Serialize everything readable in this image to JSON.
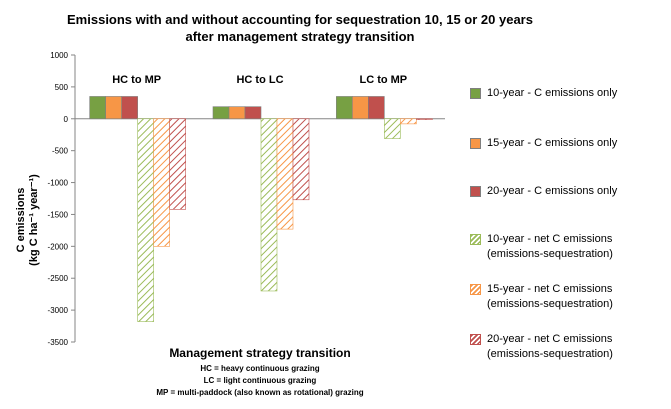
{
  "chart_data": {
    "type": "bar",
    "title": "Emissions with and without accounting for sequestration 10, 15 or 20 years after management strategy transition",
    "categories": [
      "HC to MP",
      "HC to LC",
      "LC to MP"
    ],
    "xlabel": "Management strategy transition",
    "ylabel_line1": "C emissions",
    "ylabel_line2": "(kg C ha⁻¹ year⁻¹)",
    "ylim": [
      -3500,
      1000
    ],
    "yticks": [
      1000,
      500,
      0,
      -500,
      -1000,
      -1500,
      -2000,
      -2500,
      -3000,
      -3500
    ],
    "grid": false,
    "legend_position": "right",
    "series": [
      {
        "name": "10-year - C emissions only",
        "values": [
          350,
          190,
          350
        ],
        "color": "#77a043",
        "pattern": "solid"
      },
      {
        "name": "15-year - C emissions only",
        "values": [
          350,
          190,
          350
        ],
        "color": "#f79646",
        "pattern": "solid"
      },
      {
        "name": "20-year - C emissions only",
        "values": [
          350,
          190,
          350
        ],
        "color": "#c0504d",
        "pattern": "solid"
      },
      {
        "name_line1": "10-year - net C emissions",
        "name_line2": "(emissions-sequestration)",
        "values": [
          -3180,
          -2700,
          -310
        ],
        "color": "#9bbb59",
        "pattern": "hatch"
      },
      {
        "name_line1": "15-year - net C emissions",
        "name_line2": "(emissions-sequestration)",
        "values": [
          -2000,
          -1730,
          -80
        ],
        "color": "#f79646",
        "pattern": "hatch"
      },
      {
        "name_line1": "20-year - net C emissions",
        "name_line2": "(emissions-sequestration)",
        "values": [
          -1420,
          -1270,
          -10
        ],
        "color": "#c0504d",
        "pattern": "hatch"
      }
    ],
    "notes": [
      "HC = heavy continuous grazing",
      "LC = light continuous grazing",
      "MP = multi-paddock (also known as rotational) grazing"
    ]
  }
}
